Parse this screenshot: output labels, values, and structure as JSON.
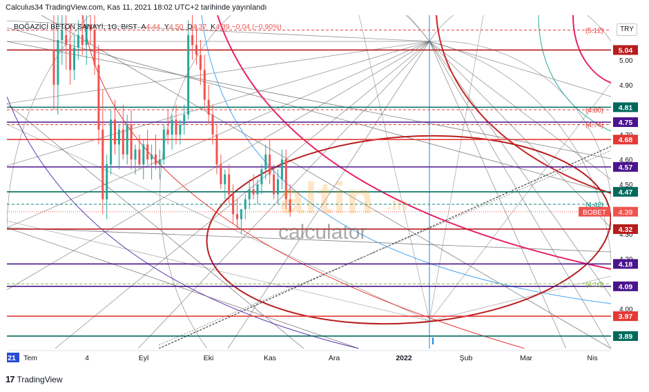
{
  "header": {
    "title": "Calculus34 TradingView.com, Kas 11, 2021 18:02 UTC+2 tarihinde yayınlandı"
  },
  "legend": {
    "symbol": "BOĞAZİÇİ BETON SANAYİ, 1G, BIST",
    "open_label": "A",
    "open": "4.44",
    "high_label": "Y",
    "high": "4.50",
    "low_label": "D",
    "low": "4.37",
    "close_label": "K",
    "close": "4.39",
    "change": "−0.04 (−0.90%)"
  },
  "currency": "TRY",
  "watermark": {
    "logo": "altin",
    "suffix": ".in",
    "sub": "calculator"
  },
  "footer": {
    "logo": "17",
    "brand": "TradingView"
  },
  "colors": {
    "up": "#26a69a",
    "down": "#ef5350",
    "ellipse": "#b71c1c",
    "pink_arc": "#e91e63",
    "blue_arc": "#42a5f5",
    "teal_arc": "#26a69a",
    "purple_arc": "#5e35b1",
    "fan": "#555555"
  },
  "chart_data": {
    "type": "candlestick",
    "symbol": "BOBET",
    "timeframe": "1G",
    "ylim": [
      3.84,
      5.18
    ],
    "x_ticks": [
      "21",
      "Tem",
      "4",
      "Eyl",
      "Eki",
      "Kas",
      "Ara",
      "2022",
      "Şub",
      "Mar",
      "Nis"
    ],
    "y_ticks": [
      {
        "value": 5.0,
        "label": "5.00"
      },
      {
        "value": 4.9,
        "label": "4.90"
      },
      {
        "value": 4.7,
        "label": "4.70"
      },
      {
        "value": 4.6,
        "label": "4.60"
      },
      {
        "value": 4.5,
        "label": "4.50"
      },
      {
        "value": 4.3,
        "label": "4.30"
      },
      {
        "value": 4.2,
        "label": "4.20"
      },
      {
        "value": 4.0,
        "label": "4.00"
      }
    ],
    "levels": [
      {
        "value": 5.04,
        "label": "5.04",
        "color": "#b71c1c"
      },
      {
        "value": 4.81,
        "label": "4.81",
        "color": "#00695c"
      },
      {
        "value": 4.75,
        "label": "4.75",
        "color": "#4a148c"
      },
      {
        "value": 4.68,
        "label": "4.68",
        "color": "#e53935"
      },
      {
        "value": 4.57,
        "label": "4.57",
        "color": "#4a148c"
      },
      {
        "value": 4.47,
        "label": "4.47",
        "color": "#00695c"
      },
      {
        "value": 4.32,
        "label": "4.32",
        "color": "#b71c1c"
      },
      {
        "value": 4.18,
        "label": "4.18",
        "color": "#4a148c"
      },
      {
        "value": 4.09,
        "label": "4.09",
        "color": "#4a148c"
      },
      {
        "value": 3.97,
        "label": "3.97",
        "color": "#e53935"
      },
      {
        "value": 3.89,
        "label": "3.89",
        "color": "#00695c"
      }
    ],
    "dashed_levels": [
      {
        "value": 5.12,
        "label": "(5.12)",
        "color": "#e53935"
      },
      {
        "value": 4.8,
        "label": "(4.80)",
        "color": "#e53935"
      },
      {
        "value": 4.74,
        "label": "(4.74)",
        "color": "#e53935"
      },
      {
        "value": 4.42,
        "label": "(4.42)",
        "color": "#00897b"
      },
      {
        "value": 4.1,
        "label": "(4.10)",
        "color": "#7cb342"
      }
    ],
    "price_label": {
      "name": "BOBET",
      "value": 4.39,
      "label": "4.39"
    },
    "candles": [
      [
        5.04,
        5.18,
        4.8,
        4.9
      ],
      [
        4.9,
        5.18,
        4.78,
        5.08
      ],
      [
        5.08,
        5.18,
        4.98,
        5.12
      ],
      [
        5.1,
        5.18,
        4.96,
        5.06
      ],
      [
        5.06,
        5.14,
        4.9,
        4.96
      ],
      [
        4.96,
        5.1,
        4.92,
        5.05
      ],
      [
        5.05,
        5.16,
        5.0,
        5.1
      ],
      [
        5.1,
        5.18,
        5.02,
        5.06
      ],
      [
        5.06,
        5.18,
        4.98,
        5.14
      ],
      [
        5.14,
        5.18,
        5.06,
        5.12
      ],
      [
        5.12,
        5.18,
        4.94,
        4.98
      ],
      [
        4.98,
        5.06,
        4.66,
        4.72
      ],
      [
        4.72,
        4.88,
        4.38,
        4.44
      ],
      [
        4.44,
        4.62,
        4.36,
        4.58
      ],
      [
        4.58,
        4.8,
        4.54,
        4.76
      ],
      [
        4.76,
        4.84,
        4.62,
        4.66
      ],
      [
        4.66,
        4.74,
        4.56,
        4.72
      ],
      [
        4.72,
        4.82,
        4.6,
        4.62
      ],
      [
        4.62,
        4.78,
        4.58,
        4.74
      ],
      [
        4.74,
        4.8,
        4.56,
        4.6
      ],
      [
        4.6,
        4.66,
        4.54,
        4.64
      ],
      [
        4.64,
        4.7,
        4.56,
        4.58
      ],
      [
        4.58,
        4.68,
        4.52,
        4.66
      ],
      [
        4.66,
        4.72,
        4.58,
        4.6
      ],
      [
        4.6,
        4.66,
        4.52,
        4.62
      ],
      [
        4.62,
        4.7,
        4.56,
        4.58
      ],
      [
        4.58,
        4.64,
        4.52,
        4.6
      ],
      [
        4.6,
        4.74,
        4.58,
        4.72
      ],
      [
        4.72,
        4.8,
        4.66,
        4.7
      ],
      [
        4.7,
        4.78,
        4.64,
        4.76
      ],
      [
        4.76,
        4.82,
        4.66,
        4.7
      ],
      [
        4.7,
        4.76,
        4.66,
        4.74
      ],
      [
        4.74,
        4.82,
        4.7,
        4.78
      ],
      [
        4.78,
        5.16,
        4.76,
        5.1
      ],
      [
        5.1,
        5.18,
        5.0,
        5.06
      ],
      [
        5.06,
        5.14,
        4.98,
        5.02
      ],
      [
        5.02,
        5.08,
        4.9,
        4.96
      ],
      [
        4.96,
        5.02,
        4.8,
        4.84
      ],
      [
        4.84,
        4.9,
        4.74,
        4.78
      ],
      [
        4.78,
        4.82,
        4.66,
        4.7
      ],
      [
        4.7,
        4.74,
        4.54,
        4.58
      ],
      [
        4.58,
        4.62,
        4.48,
        4.5
      ],
      [
        4.5,
        4.56,
        4.44,
        4.54
      ],
      [
        4.54,
        4.58,
        4.42,
        4.46
      ],
      [
        4.46,
        4.5,
        4.34,
        4.38
      ],
      [
        4.38,
        4.44,
        4.32,
        4.36
      ],
      [
        4.36,
        4.4,
        4.3,
        4.4
      ],
      [
        4.4,
        4.46,
        4.36,
        4.44
      ],
      [
        4.44,
        4.52,
        4.4,
        4.48
      ],
      [
        4.48,
        4.54,
        4.44,
        4.46
      ],
      [
        4.46,
        4.52,
        4.42,
        4.5
      ],
      [
        4.5,
        4.58,
        4.46,
        4.56
      ],
      [
        4.56,
        4.66,
        4.52,
        4.62
      ],
      [
        4.62,
        4.68,
        4.5,
        4.54
      ],
      [
        4.54,
        4.58,
        4.44,
        4.46
      ],
      [
        4.46,
        4.56,
        4.42,
        4.52
      ],
      [
        4.52,
        4.64,
        4.48,
        4.6
      ],
      [
        4.6,
        4.64,
        4.4,
        4.44
      ],
      [
        4.44,
        4.5,
        4.37,
        4.39
      ]
    ]
  }
}
